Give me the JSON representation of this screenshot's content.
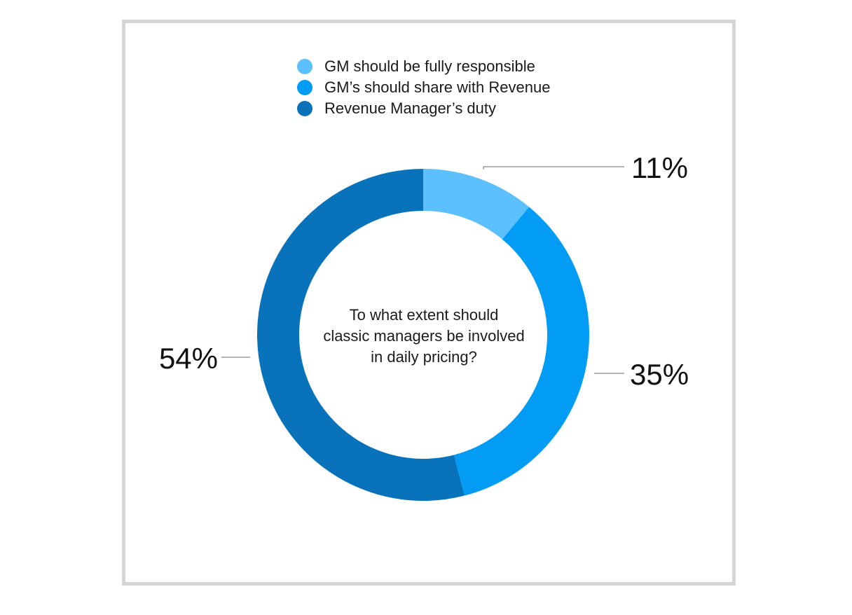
{
  "chart_data": {
    "type": "pie",
    "subtype": "donut",
    "center_text": "To what extent should\nclassic managers be involved\nin  daily pricing?",
    "legend_placement": "top-center",
    "slices": [
      {
        "label": "GM should be fully responsible",
        "value": 11,
        "value_label": "11%",
        "color": "#5bc0fb"
      },
      {
        "label": "GM’s should share with Revenue",
        "value": 35,
        "value_label": "35%",
        "color": "#039cf5"
      },
      {
        "label": "Revenue Manager’s duty",
        "value": 54,
        "value_label": "54%",
        "color": "#0872ba"
      }
    ]
  }
}
